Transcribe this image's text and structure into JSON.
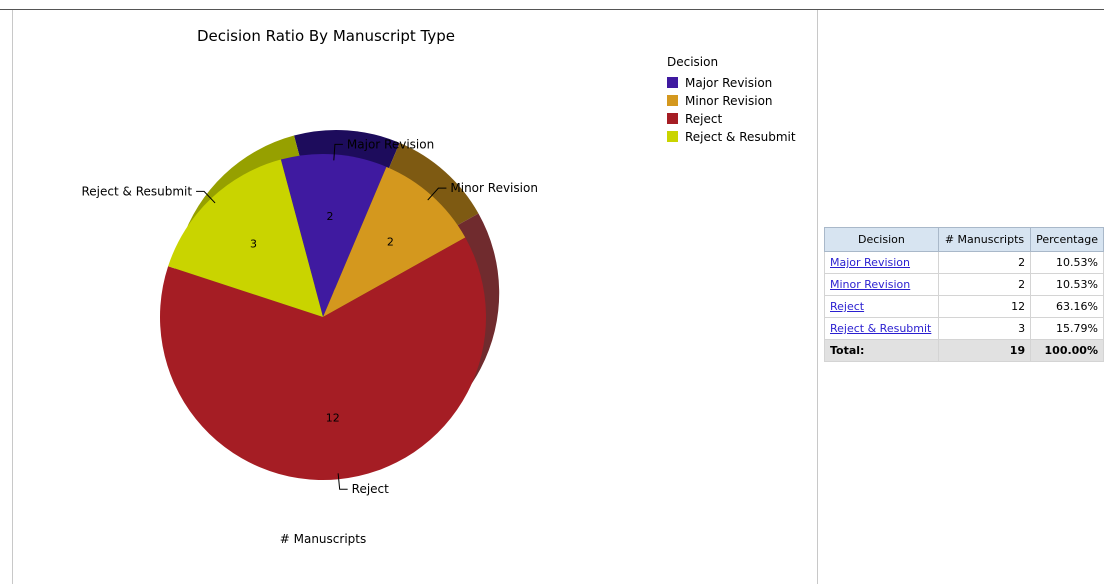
{
  "chart_data": {
    "type": "pie",
    "title": "Decision Ratio By Manuscript Type",
    "xlabel": "# Manuscripts",
    "legend_title": "Decision",
    "legend_position": "top-right",
    "slices": [
      {
        "name": "Major Revision",
        "value": 2,
        "color": "#3f1aa0",
        "side_color": "#1d0c5c"
      },
      {
        "name": "Minor Revision",
        "value": 2,
        "color": "#d4981e",
        "side_color": "#7e5a12"
      },
      {
        "name": "Reject",
        "value": 12,
        "color": "#a51d24",
        "side_color": "#702b2e"
      },
      {
        "name": "Reject & Resubmit",
        "value": 3,
        "color": "#c9d400",
        "side_color": "#96a000"
      }
    ]
  },
  "table": {
    "headers": [
      "Decision",
      "# Manuscripts",
      "Percentage"
    ],
    "rows": [
      {
        "decision": "Major Revision",
        "count": "2",
        "percentage": "10.53%"
      },
      {
        "decision": "Minor Revision",
        "count": "2",
        "percentage": "10.53%"
      },
      {
        "decision": "Reject",
        "count": "12",
        "percentage": "63.16%"
      },
      {
        "decision": "Reject & Resubmit",
        "count": "3",
        "percentage": "15.79%"
      }
    ],
    "total": {
      "label": "Total:",
      "count": "19",
      "percentage": "100.00%"
    }
  }
}
